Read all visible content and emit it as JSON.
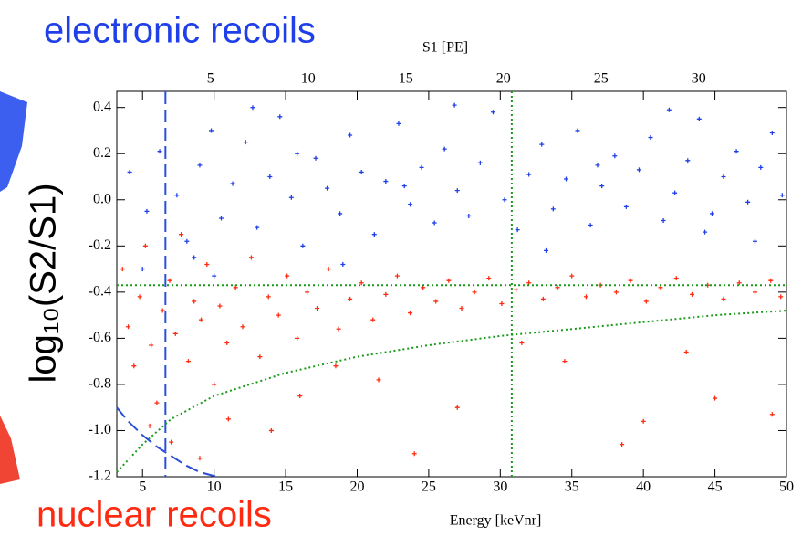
{
  "chart_data": {
    "type": "scatter",
    "xlabel": "Energy [keVnr]",
    "x2label": "S1 [PE]",
    "ylabel": "log₁₀(S2/S1)",
    "xlim": [
      3.2,
      50
    ],
    "xticks": [
      5,
      10,
      15,
      20,
      25,
      30,
      35,
      40,
      45,
      50
    ],
    "x2lim": [
      0.2,
      34.5
    ],
    "x2ticks": [
      5,
      10,
      15,
      20,
      25,
      30
    ],
    "ylim": [
      -1.2,
      0.47
    ],
    "yticks": [
      {
        "value": -1.2,
        "label": "-1.2"
      },
      {
        "value": -1,
        "label": "-1.0"
      },
      {
        "value": -0.8,
        "label": "-0.8"
      },
      {
        "value": -0.6,
        "label": "-0.6"
      },
      {
        "value": -0.4,
        "label": "-0.4"
      },
      {
        "value": -0.2,
        "label": "-0.2"
      },
      {
        "value": 0,
        "label": "0.0"
      },
      {
        "value": 0.2,
        "label": "0.2"
      },
      {
        "value": 0.4,
        "label": "0.4"
      }
    ],
    "series": [
      {
        "name": "electronic recoils",
        "color": "#1f3fe8",
        "x": [
          4.1,
          5.3,
          6.2,
          7.4,
          8.1,
          9.0,
          9.8,
          10.5,
          11.3,
          12.2,
          13.0,
          13.9,
          14.6,
          15.4,
          16.2,
          17.1,
          17.9,
          18.8,
          19.5,
          20.3,
          21.2,
          22.0,
          22.9,
          23.7,
          24.5,
          25.4,
          26.1,
          27.0,
          27.8,
          28.6,
          29.5,
          30.3,
          31.2,
          32.0,
          32.9,
          33.7,
          34.6,
          35.4,
          36.3,
          37.1,
          38.0,
          38.8,
          39.7,
          40.5,
          41.4,
          42.2,
          43.1,
          43.9,
          44.8,
          45.6,
          46.5,
          47.3,
          48.2,
          49.0,
          49.7,
          5.0,
          8.6,
          12.7,
          19.0,
          26.8,
          33.2,
          41.8,
          47.8,
          10.0,
          15.8,
          23.3,
          36.8,
          44.3
        ],
        "values": [
          0.12,
          -0.05,
          0.21,
          0.02,
          -0.18,
          0.15,
          0.3,
          -0.08,
          0.07,
          0.25,
          -0.12,
          0.1,
          0.36,
          0.01,
          -0.2,
          0.18,
          0.05,
          -0.06,
          0.28,
          0.12,
          -0.15,
          0.08,
          0.33,
          -0.02,
          0.14,
          -0.1,
          0.22,
          0.04,
          -0.07,
          0.16,
          0.38,
          0.0,
          -0.13,
          0.11,
          0.24,
          -0.04,
          0.09,
          0.3,
          -0.11,
          0.06,
          0.19,
          -0.03,
          0.13,
          0.27,
          -0.09,
          0.03,
          0.17,
          0.35,
          -0.06,
          0.1,
          0.21,
          -0.01,
          0.14,
          0.29,
          0.02,
          -0.3,
          -0.25,
          0.4,
          -0.28,
          0.41,
          -0.22,
          0.39,
          -0.18,
          -0.33,
          0.2,
          0.06,
          0.15,
          -0.14
        ]
      },
      {
        "name": "nuclear recoils",
        "color": "#ff2a10",
        "x": [
          3.6,
          4.0,
          4.4,
          4.8,
          5.2,
          5.6,
          6.0,
          6.4,
          6.9,
          7.3,
          7.7,
          8.2,
          8.6,
          9.1,
          9.5,
          10.0,
          10.4,
          10.9,
          11.5,
          12.0,
          12.6,
          13.2,
          13.8,
          14.5,
          15.1,
          15.8,
          16.5,
          17.2,
          18.0,
          18.7,
          19.5,
          20.3,
          21.1,
          22.0,
          22.8,
          23.7,
          24.6,
          25.5,
          26.4,
          27.3,
          28.2,
          29.2,
          30.1,
          31.1,
          32.0,
          33.0,
          34.0,
          35.0,
          36.0,
          37.0,
          38.1,
          39.1,
          40.2,
          41.2,
          42.3,
          43.4,
          44.5,
          45.6,
          46.7,
          47.8,
          48.9,
          49.6,
          7.0,
          11.0,
          16.0,
          21.5,
          27.0,
          34.5,
          40.0,
          45.0,
          49.0,
          9.0,
          14.0,
          24.0,
          38.5,
          5.5,
          18.5,
          31.5,
          43.0
        ],
        "values": [
          -0.3,
          -0.55,
          -0.72,
          -0.42,
          -0.2,
          -0.63,
          -0.88,
          -0.48,
          -0.35,
          -0.58,
          -0.15,
          -0.7,
          -0.44,
          -0.52,
          -0.28,
          -0.8,
          -0.46,
          -0.62,
          -0.38,
          -0.55,
          -0.25,
          -0.68,
          -0.42,
          -0.5,
          -0.33,
          -0.6,
          -0.4,
          -0.47,
          -0.3,
          -0.56,
          -0.43,
          -0.36,
          -0.52,
          -0.41,
          -0.33,
          -0.49,
          -0.38,
          -0.44,
          -0.35,
          -0.47,
          -0.4,
          -0.34,
          -0.45,
          -0.39,
          -0.36,
          -0.43,
          -0.38,
          -0.33,
          -0.42,
          -0.37,
          -0.4,
          -0.35,
          -0.44,
          -0.38,
          -0.34,
          -0.41,
          -0.37,
          -0.43,
          -0.36,
          -0.4,
          -0.35,
          -0.42,
          -1.05,
          -0.95,
          -0.85,
          -0.78,
          -0.9,
          -0.7,
          -0.96,
          -0.86,
          -0.93,
          -1.12,
          -1.0,
          -1.1,
          -1.06,
          -0.98,
          -0.72,
          -0.62,
          -0.66
        ]
      }
    ],
    "vlines": [
      {
        "x": 6.6,
        "color": "#2b4fd9",
        "style": "dashed"
      },
      {
        "x": 30.8,
        "color": "#1a9a1a",
        "style": "dotted"
      }
    ],
    "hlines": [
      {
        "y": -0.37,
        "color": "#1a9a1a",
        "style": "dotted"
      }
    ],
    "curves": [
      {
        "color": "#1a9a1a",
        "style": "dotted",
        "x": [
          3.2,
          5,
          7,
          10,
          15,
          20,
          25,
          30,
          35,
          40,
          45,
          50
        ],
        "y": [
          -1.18,
          -1.06,
          -0.95,
          -0.85,
          -0.75,
          -0.68,
          -0.63,
          -0.59,
          -0.56,
          -0.53,
          -0.5,
          -0.48
        ]
      },
      {
        "color": "#2b4fd9",
        "style": "dashed",
        "x": [
          3.2,
          4,
          5,
          6,
          7,
          8,
          9,
          10.2
        ],
        "y": [
          -0.9,
          -0.96,
          -1.02,
          -1.07,
          -1.11,
          -1.15,
          -1.18,
          -1.2
        ]
      }
    ]
  }
}
